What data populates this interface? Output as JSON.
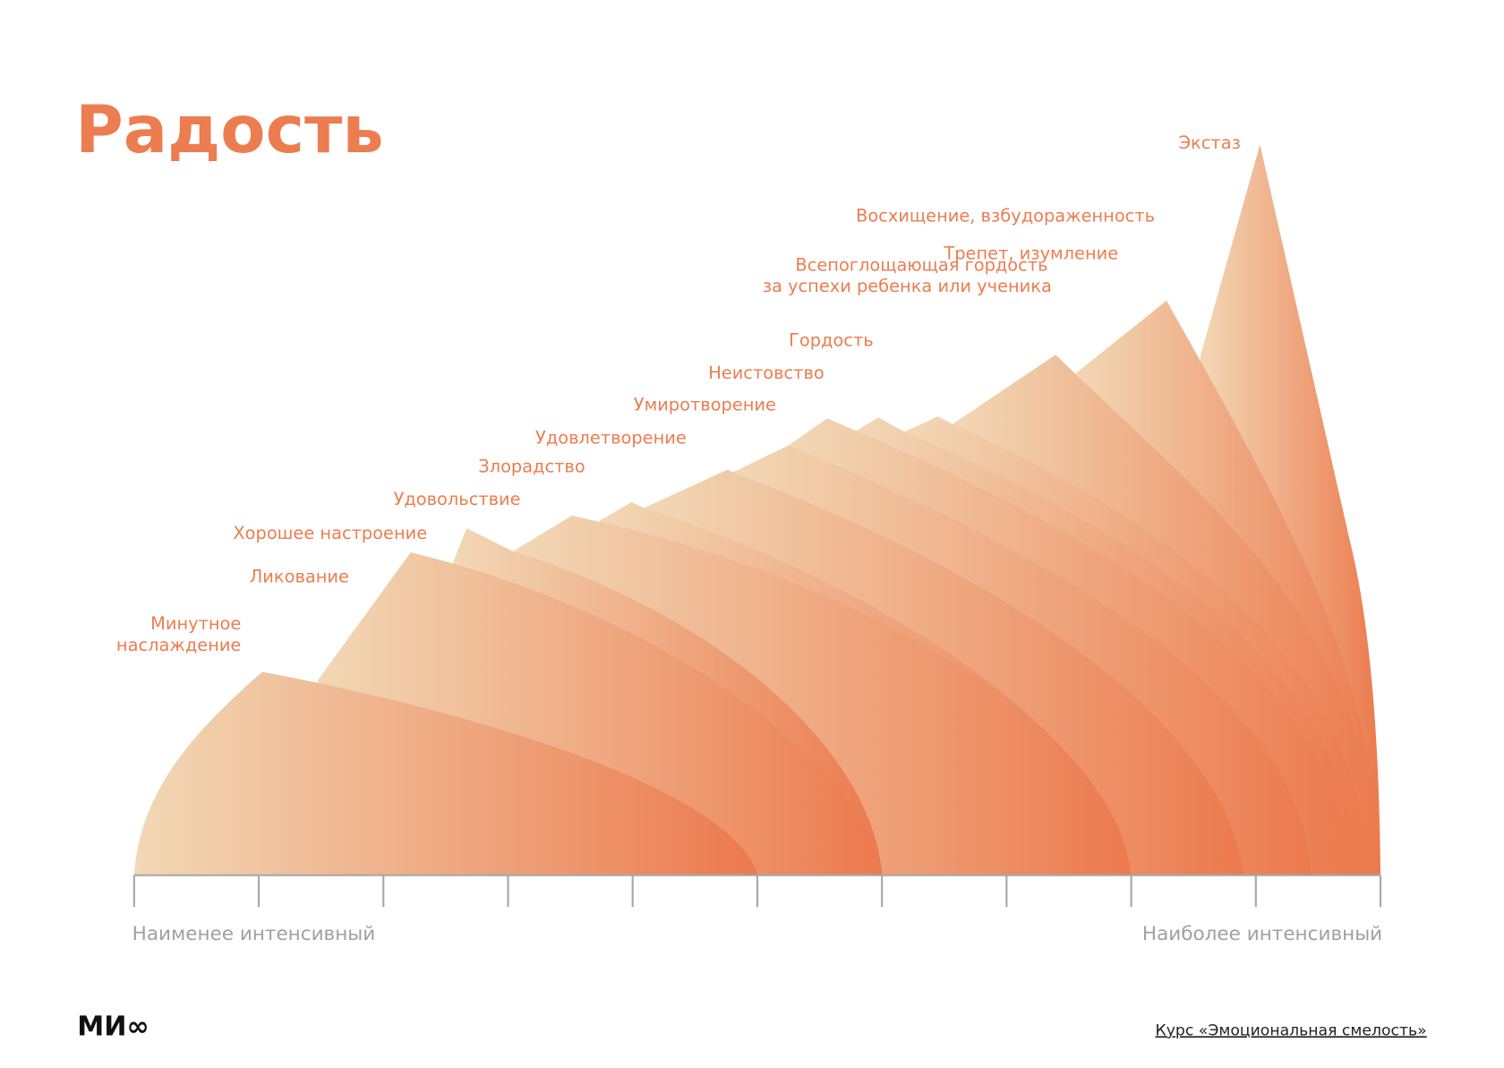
{
  "colors": {
    "accent": "#ec7d50",
    "gradient_light": "#f2d8b6",
    "gradient_dark": "#ec7a4e",
    "axis": "#a8a8a8"
  },
  "chart_data": {
    "type": "area",
    "title": "Радость",
    "xlabel_min": "Наименее интенсивный",
    "xlabel_max": "Наиболее интенсивный",
    "tick_count": 11,
    "grid": false,
    "emotions": [
      {
        "label": [
          "Минутное",
          "наслаждение"
        ],
        "intensity_rank": 1
      },
      {
        "label": [
          "Ликование"
        ],
        "intensity_rank": 2
      },
      {
        "label": [
          "Хорошее настроение"
        ],
        "intensity_rank": 3
      },
      {
        "label": [
          "Удовольствие"
        ],
        "intensity_rank": 4
      },
      {
        "label": [
          "Злорадство"
        ],
        "intensity_rank": 5
      },
      {
        "label": [
          "Удовлетворение"
        ],
        "intensity_rank": 6
      },
      {
        "label": [
          "Умиротворение"
        ],
        "intensity_rank": 7
      },
      {
        "label": [
          "Неистовство"
        ],
        "intensity_rank": 8
      },
      {
        "label": [
          "Гордость"
        ],
        "intensity_rank": 9
      },
      {
        "label": [
          "Всепоглощающая гордость",
          "за успехи ребенка или ученика"
        ],
        "intensity_rank": 10
      },
      {
        "label": [
          "Трепет, изумление"
        ],
        "intensity_rank": 11
      },
      {
        "label": [
          "Восхищение, взбудораженность"
        ],
        "intensity_rank": 12
      },
      {
        "label": [
          "Экстаз"
        ],
        "intensity_rank": 13
      }
    ]
  },
  "footer": {
    "logo": "МИ∞",
    "course_link": "Курс «Эмоциональная смелость»"
  }
}
